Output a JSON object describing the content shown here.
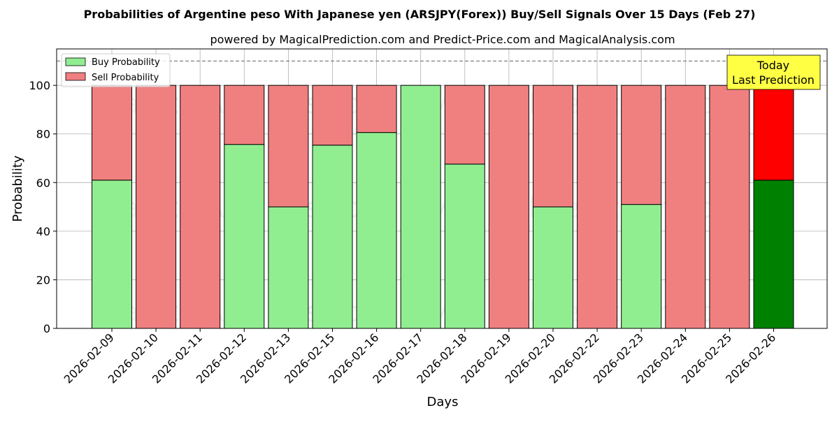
{
  "chart_data": {
    "type": "bar",
    "stacked": true,
    "title": "Probabilities of Argentine peso With Japanese yen (ARSJPY(Forex)) Buy/Sell Signals Over 15 Days (Feb 27)",
    "subtitle": "powered by MagicalPrediction.com and Predict-Price.com and MagicalAnalysis.com",
    "xlabel": "Days",
    "ylabel": "Probability",
    "ylim": [
      0,
      115
    ],
    "yticks": [
      0,
      20,
      40,
      60,
      80,
      100
    ],
    "grid": true,
    "legend_position": "top-left",
    "reference_line": 110,
    "categories": [
      "2026-02-09",
      "2026-02-10",
      "2026-02-11",
      "2026-02-12",
      "2026-02-13",
      "2026-02-15",
      "2026-02-16",
      "2026-02-17",
      "2026-02-18",
      "2026-02-19",
      "2026-02-20",
      "2026-02-22",
      "2026-02-23",
      "2026-02-24",
      "2026-02-25",
      "2026-02-26"
    ],
    "series": [
      {
        "name": "Buy Probability",
        "color": "#90ee90",
        "values": [
          61,
          0,
          0,
          75.7,
          50,
          75.4,
          80.6,
          100,
          67.6,
          0,
          50,
          0,
          51,
          0,
          0,
          61
        ]
      },
      {
        "name": "Sell Probability",
        "color": "#f08080",
        "values": [
          39,
          100,
          100,
          24.3,
          50,
          24.6,
          19.4,
          0,
          32.4,
          100,
          50,
          100,
          49,
          100,
          100,
          39
        ]
      }
    ],
    "highlight": {
      "index": 15,
      "buy_color": "#008000",
      "sell_color": "#ff0000",
      "label_line1": "Today",
      "label_line2": "Last Prediction",
      "label_bg": "#ffff44"
    },
    "watermarks": [
      "MagicalAnalysis.com",
      "MagicalPrediction.com"
    ]
  }
}
